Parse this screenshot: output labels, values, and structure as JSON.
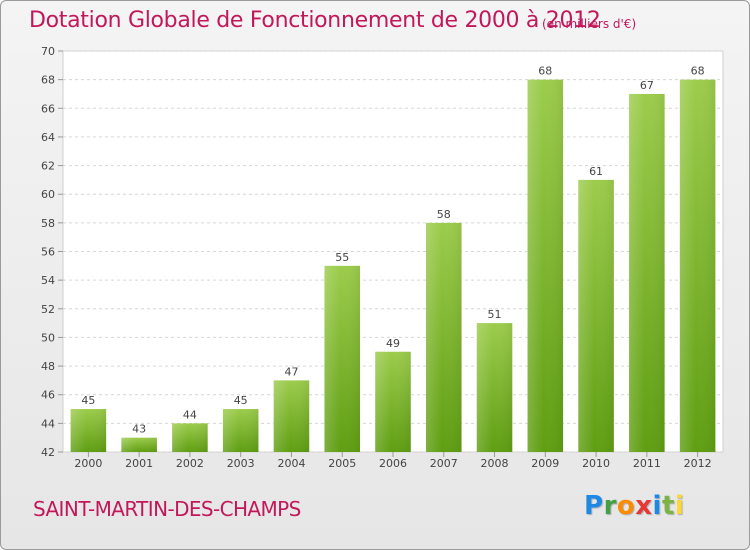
{
  "header": {
    "title": "Dotation Globale de Fonctionnement de 2000 à 2012",
    "unit": "(en milliers d'€)"
  },
  "footer": {
    "commune": "SAINT-MARTIN-DES-CHAMPS",
    "logo_letters": [
      {
        "char": "P",
        "color": "#1e88e5"
      },
      {
        "char": "r",
        "color": "#43a047"
      },
      {
        "char": "o",
        "color": "#fb8c00"
      },
      {
        "char": "x",
        "color": "#e53935"
      },
      {
        "char": "i",
        "color": "#1e88e5"
      },
      {
        "char": "t",
        "color": "#7cb342"
      },
      {
        "char": "i",
        "color": "#fdd835"
      }
    ]
  },
  "chart_data": {
    "type": "bar",
    "title": "Dotation Globale de Fonctionnement de 2000 à 2012",
    "subtitle": "(en milliers d'€)",
    "xlabel": "",
    "ylabel": "",
    "categories": [
      "2000",
      "2001",
      "2002",
      "2003",
      "2004",
      "2005",
      "2006",
      "2007",
      "2008",
      "2009",
      "2010",
      "2011",
      "2012"
    ],
    "values": [
      45,
      43,
      44,
      45,
      47,
      55,
      49,
      58,
      51,
      68,
      61,
      67,
      68
    ],
    "ylim": [
      42,
      70
    ],
    "yticks": [
      42,
      44,
      46,
      48,
      50,
      52,
      54,
      56,
      58,
      60,
      62,
      64,
      66,
      68,
      70
    ],
    "grid": true,
    "bar_color_top": "#9ccc4c",
    "bar_color_bottom": "#5f9e12"
  }
}
